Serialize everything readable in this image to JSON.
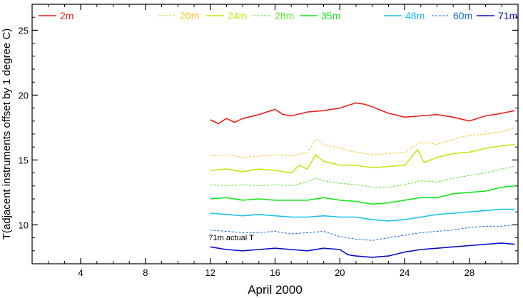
{
  "chart_data": {
    "type": "line",
    "xlabel": "April 2000",
    "ylabel": "T(adjacent instruments offset by 1 degree C)",
    "xlim": [
      1,
      31
    ],
    "ylim": [
      7,
      27
    ],
    "x_ticks": [
      4,
      8,
      12,
      16,
      20,
      24,
      28
    ],
    "y_ticks": [
      10,
      15,
      20,
      25
    ],
    "grid": false,
    "legend_position": "top",
    "annotations": [
      {
        "text": "71m actual T",
        "x": 11.9,
        "y": 8.8
      }
    ],
    "series": [
      {
        "name": "2m",
        "color": "#e8211e",
        "dash": "solid",
        "width": 1.6,
        "x": [
          12,
          12.5,
          13,
          13.5,
          14,
          15,
          16,
          16.5,
          17,
          18,
          19,
          20,
          21,
          21.5,
          22,
          23,
          24,
          25,
          26,
          27,
          28,
          29,
          30,
          30.8
        ],
        "y": [
          18.1,
          17.8,
          18.2,
          17.9,
          18.2,
          18.5,
          18.9,
          18.5,
          18.4,
          18.7,
          18.8,
          19.0,
          19.4,
          19.3,
          19.1,
          18.6,
          18.3,
          18.4,
          18.5,
          18.3,
          18.0,
          18.4,
          18.6,
          18.8
        ]
      },
      {
        "name": "20m",
        "color": "#f2c623",
        "dash": "dash",
        "width": 1.0,
        "x": [
          12,
          13,
          14,
          15,
          16,
          17,
          18,
          18.5,
          19,
          20,
          21,
          22,
          23,
          24,
          25,
          26,
          27,
          28,
          29,
          30,
          30.8
        ],
        "y": [
          15.3,
          15.4,
          15.2,
          15.3,
          15.4,
          15.3,
          15.6,
          16.6,
          16.2,
          15.9,
          15.6,
          15.4,
          15.5,
          15.6,
          16.4,
          16.2,
          16.6,
          16.9,
          17.0,
          17.2,
          17.5
        ]
      },
      {
        "name": "24m",
        "color": "#c4e614",
        "dash": "solid",
        "width": 1.6,
        "x": [
          12,
          13,
          14,
          15,
          16,
          17,
          17.5,
          18,
          18.5,
          19,
          20,
          21,
          22,
          23,
          24,
          24.8,
          25.2,
          26,
          27,
          28,
          29,
          30,
          30.8
        ],
        "y": [
          14.2,
          14.3,
          14.1,
          14.3,
          14.2,
          14.0,
          14.6,
          14.3,
          15.4,
          14.9,
          14.6,
          14.6,
          14.4,
          14.5,
          14.6,
          15.8,
          14.8,
          15.2,
          15.5,
          15.6,
          15.9,
          16.1,
          16.2
        ]
      },
      {
        "name": "28m",
        "color": "#5fe32e",
        "dash": "dash",
        "width": 1.0,
        "x": [
          12,
          13,
          14,
          15,
          16,
          17,
          18,
          18.5,
          19,
          20,
          21,
          22,
          23,
          24,
          25,
          26,
          27,
          28,
          29,
          30,
          30.8
        ],
        "y": [
          13.1,
          13.0,
          13.1,
          13.0,
          13.1,
          13.0,
          13.3,
          13.6,
          13.4,
          13.2,
          13.1,
          12.9,
          12.9,
          13.1,
          13.4,
          13.3,
          13.6,
          13.8,
          14.0,
          14.3,
          14.5
        ]
      },
      {
        "name": "35m",
        "color": "#16e61e",
        "dash": "solid",
        "width": 1.6,
        "x": [
          12,
          13,
          14,
          15,
          16,
          17,
          18,
          19,
          20,
          21,
          22,
          23,
          24,
          25,
          26,
          27,
          28,
          29,
          30,
          30.8
        ],
        "y": [
          12.0,
          12.1,
          11.9,
          12.0,
          11.9,
          11.9,
          11.9,
          12.1,
          11.9,
          11.8,
          11.6,
          11.7,
          11.9,
          12.1,
          12.1,
          12.4,
          12.5,
          12.6,
          12.9,
          13.0
        ]
      },
      {
        "name": "48m",
        "color": "#1cc0ea",
        "dash": "solid",
        "width": 1.6,
        "x": [
          12,
          13,
          14,
          15,
          16,
          17,
          18,
          19,
          20,
          21,
          22,
          23,
          24,
          25,
          26,
          27,
          28,
          29,
          30,
          30.8
        ],
        "y": [
          10.9,
          10.8,
          10.7,
          10.8,
          10.7,
          10.6,
          10.6,
          10.7,
          10.6,
          10.6,
          10.4,
          10.3,
          10.4,
          10.6,
          10.8,
          10.9,
          11.0,
          11.1,
          11.2,
          11.2
        ]
      },
      {
        "name": "60m",
        "color": "#1a64da",
        "dash": "dash",
        "width": 1.0,
        "x": [
          12,
          13,
          14,
          15,
          16,
          17,
          18,
          19,
          20,
          21,
          22,
          23,
          24,
          25,
          26,
          27,
          28,
          29,
          30,
          30.8
        ],
        "y": [
          9.6,
          9.5,
          9.4,
          9.4,
          9.5,
          9.3,
          9.4,
          9.5,
          9.1,
          8.9,
          8.8,
          9.0,
          9.2,
          9.4,
          9.5,
          9.6,
          9.8,
          9.9,
          9.9,
          10.0
        ]
      },
      {
        "name": "71m",
        "color": "#0c0cc6",
        "dash": "solid",
        "width": 1.6,
        "x": [
          12,
          13,
          14,
          15,
          16,
          17,
          18,
          19,
          20,
          20.5,
          21,
          22,
          23,
          24,
          25,
          26,
          27,
          28,
          29,
          30,
          30.8
        ],
        "y": [
          8.3,
          8.1,
          8.0,
          8.1,
          8.2,
          8.1,
          8.0,
          8.2,
          8.1,
          7.7,
          7.6,
          7.5,
          7.6,
          7.9,
          8.1,
          8.2,
          8.3,
          8.4,
          8.5,
          8.6,
          8.5
        ]
      }
    ]
  }
}
